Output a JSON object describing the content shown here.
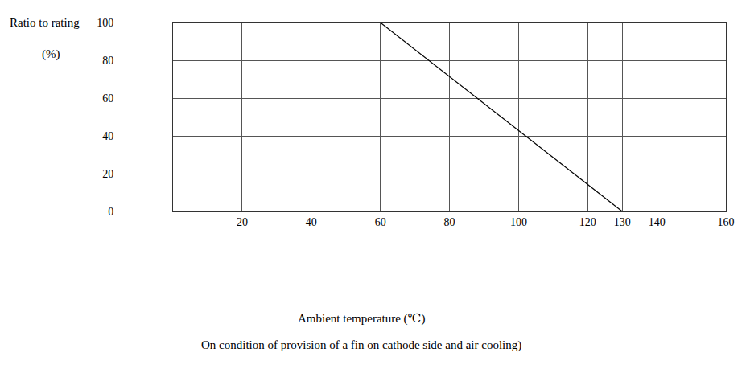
{
  "chart_data": {
    "type": "line",
    "y_label": "Ratio to rating",
    "y_unit": "(%)",
    "x_label": "Ambient temperature (℃)",
    "note": "On condition of provision of a fin on cathode side and air cooling)",
    "x": [
      60,
      130
    ],
    "values": [
      100,
      0
    ],
    "color": "#000000",
    "xlim": [
      0,
      160
    ],
    "ylim": [
      0,
      100
    ],
    "xticks": [
      20,
      40,
      60,
      80,
      100,
      120,
      130,
      140,
      160
    ],
    "yticks": [
      0,
      20,
      40,
      60,
      80,
      100
    ],
    "grid": true
  }
}
